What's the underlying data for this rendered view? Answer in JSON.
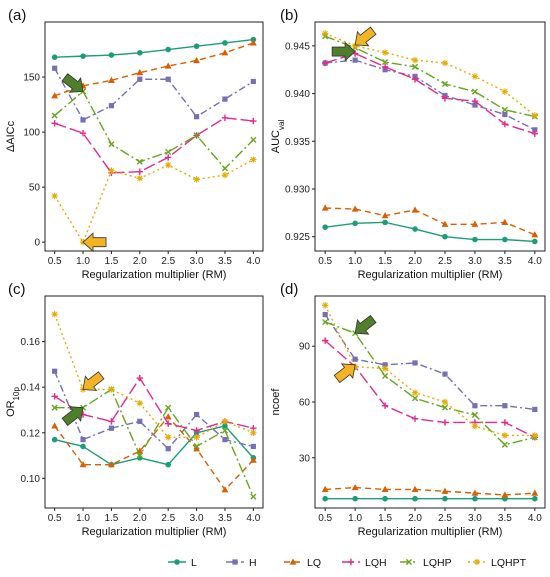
{
  "colors": {
    "L": "#1b9e77",
    "H": "#7570b3",
    "LQ": "#d95f02",
    "LQH": "#e7298a",
    "LQHP": "#66a61e",
    "LQHPT": "#e6ab02",
    "arrow_green": "#4f7f2a",
    "arrow_yellow": "#f2b324"
  },
  "legend": {
    "items": [
      {
        "key": "L",
        "label": "L"
      },
      {
        "key": "H",
        "label": "H"
      },
      {
        "key": "LQ",
        "label": "LQ"
      },
      {
        "key": "LQH",
        "label": "LQH"
      },
      {
        "key": "LQHP",
        "label": "LQHP"
      },
      {
        "key": "LQHPT",
        "label": "LQHPT"
      }
    ]
  },
  "chart_data": [
    {
      "panel": "(a)",
      "type": "line",
      "xlabel": "Regularization multiplier (RM)",
      "ylabel": "ΔAICc",
      "x": [
        0.5,
        1.0,
        1.5,
        2.0,
        2.5,
        3.0,
        3.5,
        4.0
      ],
      "xticks": [
        "0.5",
        "1.0",
        "1.5",
        "2.0",
        "2.5",
        "3.0",
        "3.5",
        "4.0"
      ],
      "ylim": [
        -8,
        200
      ],
      "yticks": [
        0,
        50,
        100,
        150
      ],
      "series": [
        {
          "name": "L",
          "values": [
            168,
            169,
            170,
            172,
            175,
            178,
            181,
            184
          ]
        },
        {
          "name": "H",
          "values": [
            158,
            111,
            124,
            148,
            148,
            114,
            130,
            146
          ]
        },
        {
          "name": "LQ",
          "values": [
            133,
            142,
            147,
            154,
            160,
            165,
            172,
            181
          ]
        },
        {
          "name": "LQH",
          "values": [
            108,
            99,
            63,
            64,
            77,
            97,
            113,
            110
          ]
        },
        {
          "name": "LQHP",
          "values": [
            115,
            137,
            89,
            73,
            82,
            97,
            67,
            93
          ]
        },
        {
          "name": "LQHPT",
          "values": [
            42,
            0,
            65,
            58,
            70,
            57,
            61,
            75
          ]
        }
      ],
      "arrows": [
        {
          "color": "green",
          "x": 1.0,
          "y": 137,
          "from": "upper-left"
        },
        {
          "color": "yellow",
          "x": 1.0,
          "y": 0,
          "from": "right"
        }
      ]
    },
    {
      "panel": "(b)",
      "type": "line",
      "xlabel": "Regularization multiplier (RM)",
      "ylabel": "AUC",
      "ylabel_sub": "val",
      "x": [
        0.5,
        1.0,
        1.5,
        2.0,
        2.5,
        3.0,
        3.5,
        4.0
      ],
      "xticks": [
        "0.5",
        "1.0",
        "1.5",
        "2.0",
        "2.5",
        "3.0",
        "3.5",
        "4.0"
      ],
      "ylim": [
        0.9235,
        0.9475
      ],
      "yticks": [
        0.925,
        0.93,
        0.935,
        0.94,
        0.945
      ],
      "ytick_labels": [
        "0.925",
        "0.930",
        "0.935",
        "0.940",
        "0.945"
      ],
      "series": [
        {
          "name": "L",
          "values": [
            0.926,
            0.9264,
            0.9265,
            0.9258,
            0.925,
            0.9247,
            0.9247,
            0.9245
          ]
        },
        {
          "name": "H",
          "values": [
            0.9432,
            0.9435,
            0.9425,
            0.9418,
            0.9398,
            0.9388,
            0.9378,
            0.9362
          ]
        },
        {
          "name": "LQ",
          "values": [
            0.928,
            0.9279,
            0.9272,
            0.9278,
            0.9263,
            0.9263,
            0.9265,
            0.9252
          ]
        },
        {
          "name": "LQH",
          "values": [
            0.9432,
            0.9442,
            0.9428,
            0.9415,
            0.9395,
            0.9392,
            0.9368,
            0.9358
          ]
        },
        {
          "name": "LQHP",
          "values": [
            0.946,
            0.9448,
            0.9433,
            0.9428,
            0.941,
            0.9402,
            0.9383,
            0.9376
          ]
        },
        {
          "name": "LQHPT",
          "values": [
            0.9463,
            0.945,
            0.9443,
            0.9435,
            0.9432,
            0.9418,
            0.9402,
            0.9377
          ]
        }
      ],
      "arrows": [
        {
          "color": "green",
          "x": 1.0,
          "y": 0.9444,
          "from": "left"
        },
        {
          "color": "yellow",
          "x": 1.0,
          "y": 0.9451,
          "from": "upper-right"
        }
      ]
    },
    {
      "panel": "(c)",
      "type": "line",
      "xlabel": "Regularization multiplier (RM)",
      "ylabel": "OR",
      "ylabel_sub": "10p",
      "x": [
        0.5,
        1.0,
        1.5,
        2.0,
        2.5,
        3.0,
        3.5,
        4.0
      ],
      "xticks": [
        "0.5",
        "1.0",
        "1.5",
        "2.0",
        "2.5",
        "3.0",
        "3.5",
        "4.0"
      ],
      "ylim": [
        0.087,
        0.18
      ],
      "yticks": [
        0.1,
        0.12,
        0.14,
        0.16
      ],
      "ytick_labels": [
        "0.10",
        "0.12",
        "0.14",
        "0.16"
      ],
      "series": [
        {
          "name": "L",
          "values": [
            0.117,
            0.114,
            0.106,
            0.109,
            0.106,
            0.12,
            0.123,
            0.109
          ]
        },
        {
          "name": "H",
          "values": [
            0.147,
            0.117,
            0.122,
            0.125,
            0.113,
            0.128,
            0.117,
            0.114
          ]
        },
        {
          "name": "LQ",
          "values": [
            0.123,
            0.106,
            0.106,
            0.112,
            0.127,
            0.113,
            0.095,
            0.108
          ]
        },
        {
          "name": "LQH",
          "values": [
            0.136,
            0.128,
            0.125,
            0.144,
            0.124,
            0.121,
            0.125,
            0.122
          ]
        },
        {
          "name": "LQHP",
          "values": [
            0.131,
            0.131,
            0.139,
            0.11,
            0.131,
            0.114,
            0.121,
            0.092
          ]
        },
        {
          "name": "LQHPT",
          "values": [
            0.172,
            0.139,
            0.139,
            0.133,
            0.118,
            0.118,
            0.125,
            0.12
          ]
        }
      ],
      "arrows": [
        {
          "color": "green",
          "x": 1.0,
          "y": 0.131,
          "from": "lower-left"
        },
        {
          "color": "yellow",
          "x": 1.0,
          "y": 0.139,
          "from": "upper-right"
        }
      ]
    },
    {
      "panel": "(d)",
      "type": "line",
      "xlabel": "Regularization multiplier (RM)",
      "ylabel": "ncoef",
      "x": [
        0.5,
        1.0,
        1.5,
        2.0,
        2.5,
        3.0,
        3.5,
        4.0
      ],
      "xticks": [
        "0.5",
        "1.0",
        "1.5",
        "2.0",
        "2.5",
        "3.0",
        "3.5",
        "4.0"
      ],
      "ylim": [
        3,
        117
      ],
      "yticks": [
        30,
        60,
        90
      ],
      "series": [
        {
          "name": "L",
          "values": [
            8,
            8,
            8,
            8,
            8,
            8,
            8,
            8
          ]
        },
        {
          "name": "H",
          "values": [
            107,
            83,
            80,
            81,
            75,
            58,
            58,
            56
          ]
        },
        {
          "name": "LQ",
          "values": [
            13,
            14,
            13,
            13,
            12,
            11,
            10,
            11
          ]
        },
        {
          "name": "LQH",
          "values": [
            93,
            79,
            58,
            51,
            49,
            49,
            49,
            41
          ]
        },
        {
          "name": "LQHP",
          "values": [
            103,
            97,
            74,
            62,
            57,
            53,
            37,
            41
          ]
        },
        {
          "name": "LQHPT",
          "values": [
            112,
            79,
            78,
            65,
            60,
            47,
            42,
            42
          ]
        }
      ],
      "arrows": [
        {
          "color": "green",
          "x": 1.0,
          "y": 97,
          "from": "upper-right"
        },
        {
          "color": "yellow",
          "x": 1.0,
          "y": 80,
          "from": "lower-left"
        }
      ]
    }
  ]
}
